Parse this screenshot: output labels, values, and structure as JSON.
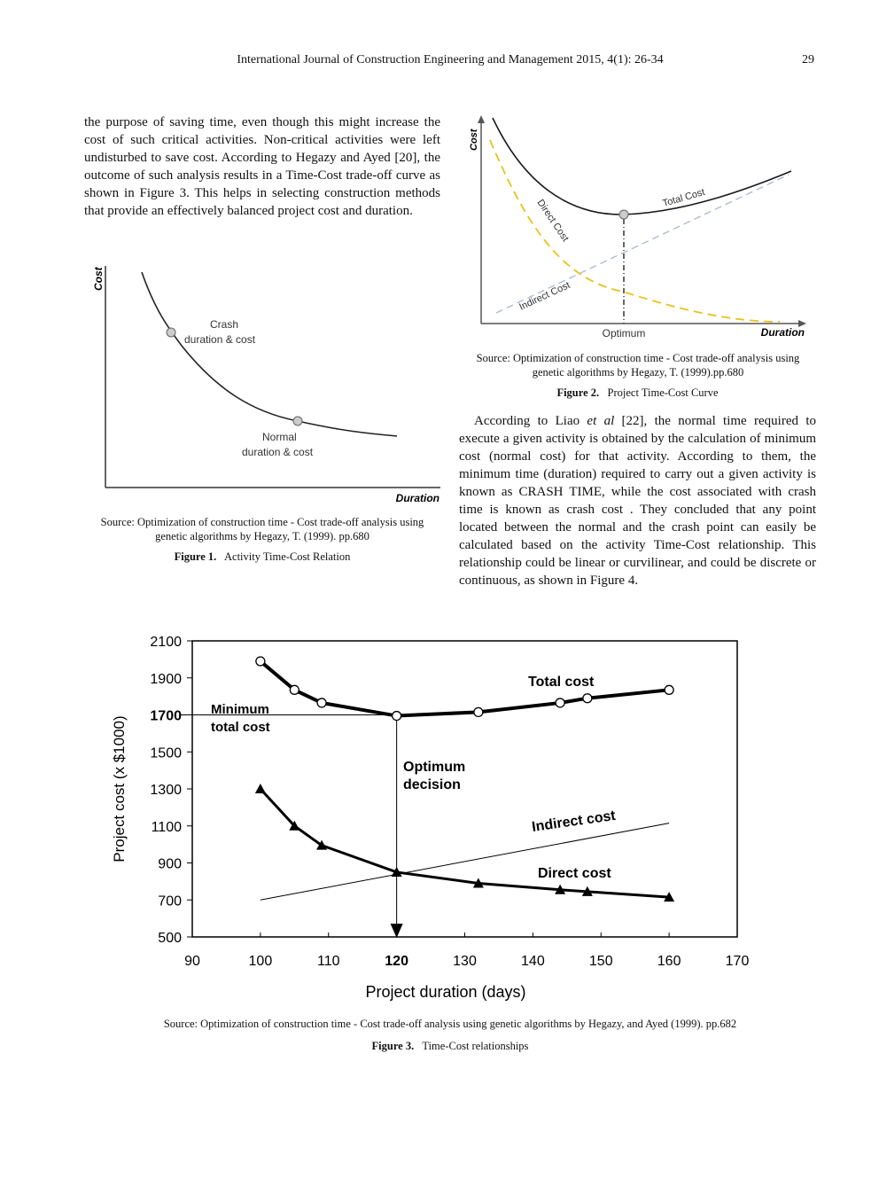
{
  "header": {
    "journal": "International Journal of Construction Engineering and Management 2015, 4(1): 26-34",
    "page_number": "29"
  },
  "left_paragraph": "the purpose of saving time, even though this might increase the cost of such critical activities. Non-critical activities were left undisturbed to save cost. According to Hegazy and Ayed [20], the outcome of such analysis results in a Time-Cost trade-off curve as shown in Figure 3. This helps in selecting construction methods that provide an effectively balanced project cost and duration.",
  "right_paragraph": {
    "before": "According to Liao ",
    "italic": "et al",
    "after": " [22], the normal time required to execute a given activity is obtained by the calculation of minimum cost (normal cost) for that activity. According to them, the minimum time (duration) required to carry out a given activity is known as CRASH TIME, while the cost associated with crash time is known as crash cost . They concluded that any point located between the normal and the crash point can easily be calculated based on the activity Time-Cost relationship. This relationship could be linear or curvilinear, and could be discrete or continuous, as shown in Figure 4."
  },
  "figure1": {
    "y_label": "Cost",
    "x_label": "Duration",
    "crash_label_1": "Crash",
    "crash_label_2": "duration & cost",
    "normal_label_1": "Normal",
    "normal_label_2": "duration & cost",
    "source": "Source: Optimization of construction time - Cost trade-off analysis using genetic algorithms by Hegazy, T. (1999). pp.680",
    "caption_num": "Figure 1.",
    "caption_text": "Activity Time-Cost Relation"
  },
  "figure2": {
    "y_label": "Cost",
    "x_label": "Duration",
    "total_label": "Total Cost",
    "direct_label": "Direct Cost",
    "indirect_label": "Indirect Cost",
    "optimum_label": "Optimum",
    "colors": {
      "total": "#1a1a1a",
      "direct": "#e8c21a",
      "indirect": "#a9b8cc"
    },
    "source": "Source: Optimization of construction time - Cost trade-off analysis using genetic algorithms by Hegazy, T. (1999).pp.680",
    "caption_num": "Figure 2.",
    "caption_text": "Project Time-Cost Curve"
  },
  "chart_data": {
    "type": "line",
    "xlabel": "Project duration (days)",
    "ylabel": "Project cost (x $1000)",
    "xlim": [
      90,
      170
    ],
    "ylim": [
      500,
      2100
    ],
    "x_ticks": [
      "90",
      "100",
      "110",
      "120",
      "130",
      "140",
      "150",
      "160",
      "170"
    ],
    "y_ticks": [
      "500",
      "700",
      "900",
      "1100",
      "1300",
      "1500",
      "1700",
      "1900",
      "2100"
    ],
    "grid": false,
    "series": [
      {
        "name": "Total cost",
        "marker": "circle",
        "x": [
          100,
          105,
          109,
          120,
          132,
          144,
          148,
          160
        ],
        "values": [
          1990,
          1835,
          1765,
          1695,
          1715,
          1765,
          1790,
          1835
        ]
      },
      {
        "name": "Direct cost",
        "marker": "triangle",
        "x": [
          100,
          105,
          109,
          120,
          132,
          144,
          148,
          160
        ],
        "values": [
          1300,
          1100,
          995,
          850,
          790,
          755,
          745,
          715
        ]
      },
      {
        "name": "Indirect cost",
        "marker": "none",
        "x": [
          100,
          160
        ],
        "values": [
          700,
          1115
        ]
      }
    ],
    "annotations": {
      "min_label_1": "Minimum",
      "min_label_2": "total cost",
      "optimum_1": "Optimum",
      "optimum_2": "decision",
      "optimum_x": 120,
      "min_y": 1700
    }
  },
  "figure3": {
    "source": "Source: Optimization of construction time - Cost trade-off analysis using genetic algorithms by Hegazy, and Ayed (1999). pp.682",
    "caption_num": "Figure 3.",
    "caption_text": "Time-Cost relationships"
  }
}
